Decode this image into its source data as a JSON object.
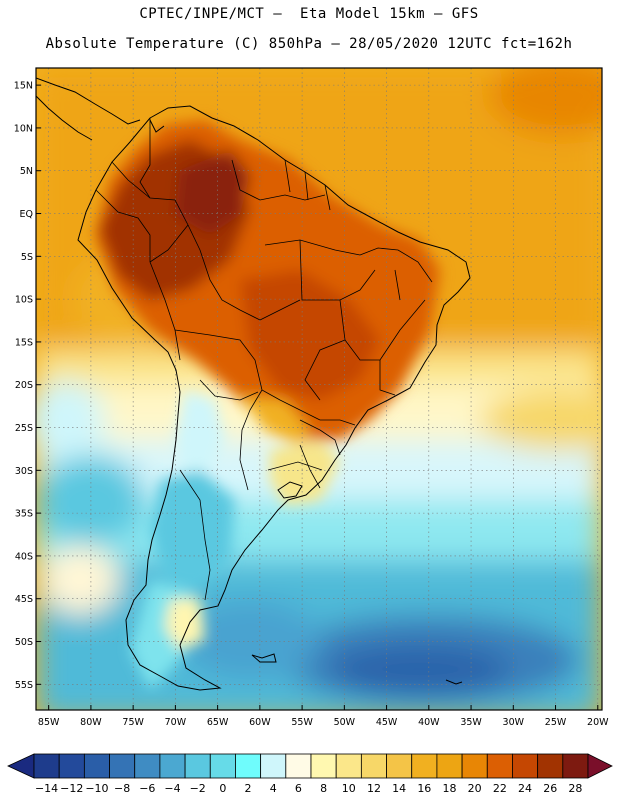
{
  "header": {
    "line1": "CPTEC/INPE/MCT –  Eta Model 15km – GFS",
    "line2": "Absolute Temperature (C) 850hPa – 28/05/2020 12UTC fct=162h"
  },
  "map": {
    "region": "South America",
    "lat_ticks": [
      "15N",
      "10N",
      "5N",
      "EQ",
      "5S",
      "10S",
      "15S",
      "20S",
      "25S",
      "30S",
      "35S",
      "40S",
      "45S",
      "50S",
      "55S"
    ],
    "lon_ticks": [
      "85W",
      "80W",
      "75W",
      "70W",
      "65W",
      "60W",
      "55W",
      "50W",
      "45W",
      "40W",
      "35W",
      "30W",
      "25W",
      "20W"
    ],
    "lat_range": [
      15,
      -55
    ],
    "lon_range": [
      -85,
      -20
    ]
  },
  "colorbar": {
    "labels": [
      "-14",
      "-12",
      "-10",
      "-8",
      "-6",
      "-4",
      "-2",
      "0",
      "2",
      "4",
      "6",
      "8",
      "10",
      "12",
      "14",
      "16",
      "18",
      "20",
      "22",
      "24",
      "26",
      "28"
    ],
    "colors": [
      "#1e3c8c",
      "#234a9b",
      "#2a5ea8",
      "#3473b5",
      "#3f8cc3",
      "#4ba8d1",
      "#5ac8e0",
      "#66dbe8",
      "#6ffcfc",
      "#cff6fb",
      "#fffbe6",
      "#fff8b0",
      "#fbe78a",
      "#f7d768",
      "#f4c447",
      "#f1b020",
      "#eda513",
      "#e88605",
      "#dc5f03",
      "#c54702",
      "#a13301",
      "#7d1a10"
    ],
    "under_color": "#1a2a80",
    "over_color": "#7a0f2a"
  }
}
